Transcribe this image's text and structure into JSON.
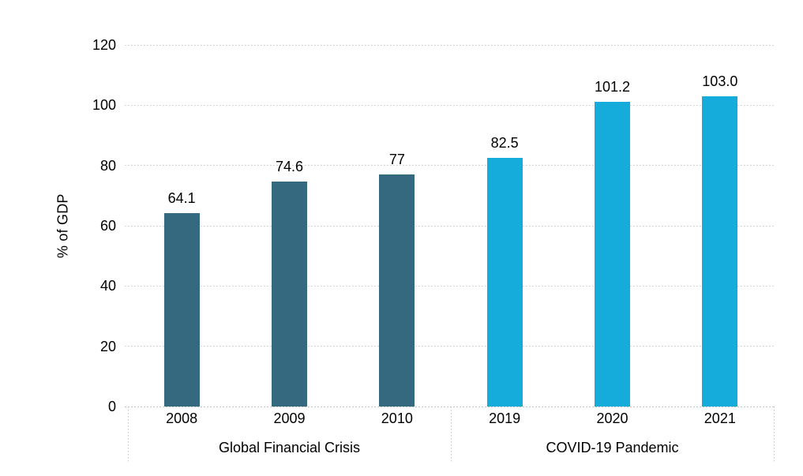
{
  "chart_data": {
    "type": "bar",
    "title": "",
    "xlabel": "",
    "ylabel": "% of GDP",
    "ylim": [
      0,
      120
    ],
    "yticks": [
      0,
      20,
      40,
      60,
      80,
      100,
      120
    ],
    "grid": true,
    "gridline_style": "dotted",
    "legend": false,
    "categories": [
      "2008",
      "2009",
      "2010",
      "2019",
      "2020",
      "2021"
    ],
    "values": [
      64.1,
      74.6,
      77,
      82.5,
      101.2,
      103.0
    ],
    "value_labels": [
      "64.1",
      "74.6",
      "77",
      "82.5",
      "101.2",
      "103.0"
    ],
    "groups": [
      {
        "label": "Global Financial Crisis",
        "color": "#35697F",
        "bars": [
          {
            "category": "2008",
            "value": 64.1,
            "label": "64.1"
          },
          {
            "category": "2009",
            "value": 74.6,
            "label": "74.6"
          },
          {
            "category": "2010",
            "value": 77,
            "label": "77"
          }
        ]
      },
      {
        "label": "COVID-19 Pandemic",
        "color": "#15ACDB",
        "bars": [
          {
            "category": "2019",
            "value": 82.5,
            "label": "82.5"
          },
          {
            "category": "2020",
            "value": 101.2,
            "label": "101.2"
          },
          {
            "category": "2021",
            "value": 103.0,
            "label": "103.0"
          }
        ]
      }
    ],
    "colors": {
      "bar_group_1": "#35697F",
      "bar_group_2": "#15ACDB",
      "gridline": "#c7c7c7",
      "text": "#000000",
      "background": "#ffffff"
    }
  }
}
